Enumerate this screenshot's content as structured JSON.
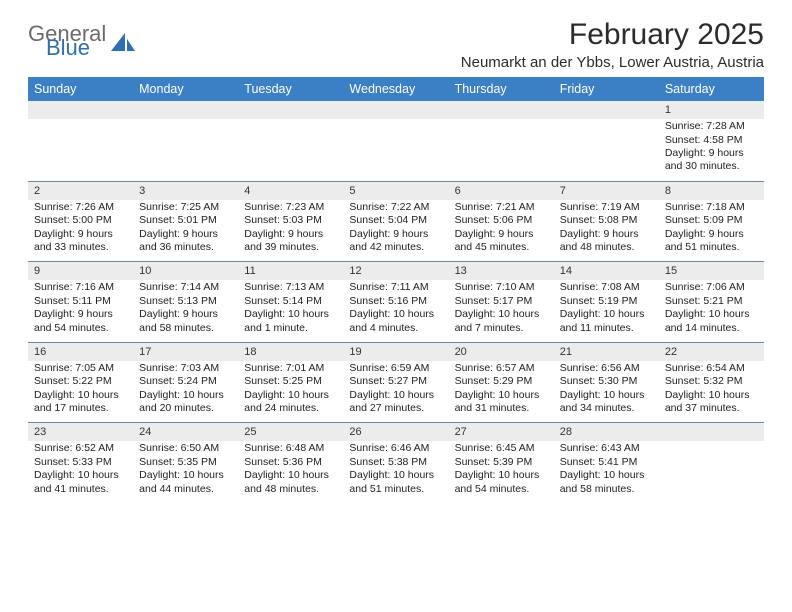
{
  "logo": {
    "word1": "General",
    "word2": "Blue"
  },
  "title": "February 2025",
  "location": "Neumarkt an der Ybbs, Lower Austria, Austria",
  "colors": {
    "header_bg": "#3b7fc4",
    "header_text": "#ffffff",
    "daynum_bg": "#ececec",
    "row_divider": "#6b85a3",
    "text": "#222222",
    "logo_gray": "#6b6b6b",
    "logo_blue": "#2f6fb0",
    "page_bg": "#ffffff"
  },
  "daysOfWeek": [
    "Sunday",
    "Monday",
    "Tuesday",
    "Wednesday",
    "Thursday",
    "Friday",
    "Saturday"
  ],
  "weeks": [
    [
      {
        "n": "",
        "sr": "",
        "ss": "",
        "dl": ""
      },
      {
        "n": "",
        "sr": "",
        "ss": "",
        "dl": ""
      },
      {
        "n": "",
        "sr": "",
        "ss": "",
        "dl": ""
      },
      {
        "n": "",
        "sr": "",
        "ss": "",
        "dl": ""
      },
      {
        "n": "",
        "sr": "",
        "ss": "",
        "dl": ""
      },
      {
        "n": "",
        "sr": "",
        "ss": "",
        "dl": ""
      },
      {
        "n": "1",
        "sr": "Sunrise: 7:28 AM",
        "ss": "Sunset: 4:58 PM",
        "dl": "Daylight: 9 hours and 30 minutes."
      }
    ],
    [
      {
        "n": "2",
        "sr": "Sunrise: 7:26 AM",
        "ss": "Sunset: 5:00 PM",
        "dl": "Daylight: 9 hours and 33 minutes."
      },
      {
        "n": "3",
        "sr": "Sunrise: 7:25 AM",
        "ss": "Sunset: 5:01 PM",
        "dl": "Daylight: 9 hours and 36 minutes."
      },
      {
        "n": "4",
        "sr": "Sunrise: 7:23 AM",
        "ss": "Sunset: 5:03 PM",
        "dl": "Daylight: 9 hours and 39 minutes."
      },
      {
        "n": "5",
        "sr": "Sunrise: 7:22 AM",
        "ss": "Sunset: 5:04 PM",
        "dl": "Daylight: 9 hours and 42 minutes."
      },
      {
        "n": "6",
        "sr": "Sunrise: 7:21 AM",
        "ss": "Sunset: 5:06 PM",
        "dl": "Daylight: 9 hours and 45 minutes."
      },
      {
        "n": "7",
        "sr": "Sunrise: 7:19 AM",
        "ss": "Sunset: 5:08 PM",
        "dl": "Daylight: 9 hours and 48 minutes."
      },
      {
        "n": "8",
        "sr": "Sunrise: 7:18 AM",
        "ss": "Sunset: 5:09 PM",
        "dl": "Daylight: 9 hours and 51 minutes."
      }
    ],
    [
      {
        "n": "9",
        "sr": "Sunrise: 7:16 AM",
        "ss": "Sunset: 5:11 PM",
        "dl": "Daylight: 9 hours and 54 minutes."
      },
      {
        "n": "10",
        "sr": "Sunrise: 7:14 AM",
        "ss": "Sunset: 5:13 PM",
        "dl": "Daylight: 9 hours and 58 minutes."
      },
      {
        "n": "11",
        "sr": "Sunrise: 7:13 AM",
        "ss": "Sunset: 5:14 PM",
        "dl": "Daylight: 10 hours and 1 minute."
      },
      {
        "n": "12",
        "sr": "Sunrise: 7:11 AM",
        "ss": "Sunset: 5:16 PM",
        "dl": "Daylight: 10 hours and 4 minutes."
      },
      {
        "n": "13",
        "sr": "Sunrise: 7:10 AM",
        "ss": "Sunset: 5:17 PM",
        "dl": "Daylight: 10 hours and 7 minutes."
      },
      {
        "n": "14",
        "sr": "Sunrise: 7:08 AM",
        "ss": "Sunset: 5:19 PM",
        "dl": "Daylight: 10 hours and 11 minutes."
      },
      {
        "n": "15",
        "sr": "Sunrise: 7:06 AM",
        "ss": "Sunset: 5:21 PM",
        "dl": "Daylight: 10 hours and 14 minutes."
      }
    ],
    [
      {
        "n": "16",
        "sr": "Sunrise: 7:05 AM",
        "ss": "Sunset: 5:22 PM",
        "dl": "Daylight: 10 hours and 17 minutes."
      },
      {
        "n": "17",
        "sr": "Sunrise: 7:03 AM",
        "ss": "Sunset: 5:24 PM",
        "dl": "Daylight: 10 hours and 20 minutes."
      },
      {
        "n": "18",
        "sr": "Sunrise: 7:01 AM",
        "ss": "Sunset: 5:25 PM",
        "dl": "Daylight: 10 hours and 24 minutes."
      },
      {
        "n": "19",
        "sr": "Sunrise: 6:59 AM",
        "ss": "Sunset: 5:27 PM",
        "dl": "Daylight: 10 hours and 27 minutes."
      },
      {
        "n": "20",
        "sr": "Sunrise: 6:57 AM",
        "ss": "Sunset: 5:29 PM",
        "dl": "Daylight: 10 hours and 31 minutes."
      },
      {
        "n": "21",
        "sr": "Sunrise: 6:56 AM",
        "ss": "Sunset: 5:30 PM",
        "dl": "Daylight: 10 hours and 34 minutes."
      },
      {
        "n": "22",
        "sr": "Sunrise: 6:54 AM",
        "ss": "Sunset: 5:32 PM",
        "dl": "Daylight: 10 hours and 37 minutes."
      }
    ],
    [
      {
        "n": "23",
        "sr": "Sunrise: 6:52 AM",
        "ss": "Sunset: 5:33 PM",
        "dl": "Daylight: 10 hours and 41 minutes."
      },
      {
        "n": "24",
        "sr": "Sunrise: 6:50 AM",
        "ss": "Sunset: 5:35 PM",
        "dl": "Daylight: 10 hours and 44 minutes."
      },
      {
        "n": "25",
        "sr": "Sunrise: 6:48 AM",
        "ss": "Sunset: 5:36 PM",
        "dl": "Daylight: 10 hours and 48 minutes."
      },
      {
        "n": "26",
        "sr": "Sunrise: 6:46 AM",
        "ss": "Sunset: 5:38 PM",
        "dl": "Daylight: 10 hours and 51 minutes."
      },
      {
        "n": "27",
        "sr": "Sunrise: 6:45 AM",
        "ss": "Sunset: 5:39 PM",
        "dl": "Daylight: 10 hours and 54 minutes."
      },
      {
        "n": "28",
        "sr": "Sunrise: 6:43 AM",
        "ss": "Sunset: 5:41 PM",
        "dl": "Daylight: 10 hours and 58 minutes."
      },
      {
        "n": "",
        "sr": "",
        "ss": "",
        "dl": ""
      }
    ]
  ]
}
